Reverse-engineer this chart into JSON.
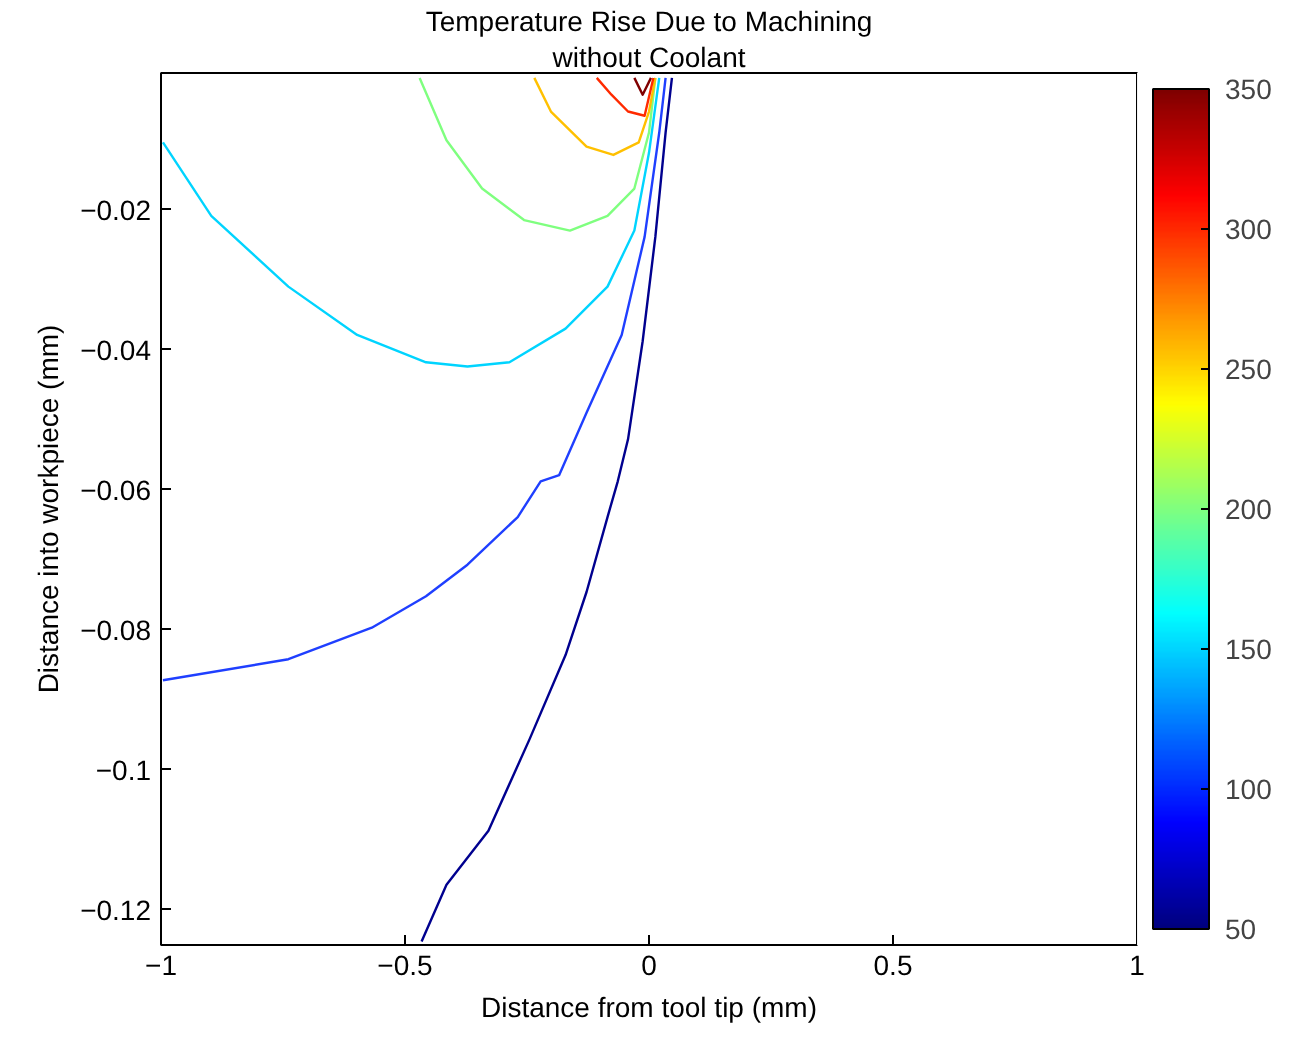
{
  "chart_data": {
    "type": "line",
    "title": "Temperature Rise Due to Machining",
    "subtitle": "without Coolant",
    "xlabel": "Distance from tool tip (mm)",
    "ylabel": "Distance into workpiece (mm)",
    "xlim": [
      -1,
      1
    ],
    "ylim": [
      -0.125,
      -0.0005
    ],
    "xticks": [
      -1,
      -0.5,
      0,
      0.5,
      1
    ],
    "yticks": [
      -0.12,
      -0.1,
      -0.08,
      -0.06,
      -0.04,
      -0.02
    ],
    "clim": [
      50,
      350
    ],
    "cticks": [
      50,
      100,
      150,
      200,
      250,
      300,
      350
    ],
    "series": [
      {
        "color": "#00008f",
        "x": [
          -0.466,
          -0.415,
          -0.329,
          -0.244,
          -0.171,
          -0.128,
          -0.085,
          -0.064,
          -0.043,
          -0.013,
          0.013,
          0.034,
          0.047
        ],
        "values": [
          -0.1245,
          -0.1164,
          -0.1087,
          -0.0955,
          -0.0836,
          -0.0746,
          -0.0639,
          -0.0588,
          -0.0528,
          -0.0388,
          -0.0239,
          -0.009,
          -0.0012
        ]
      },
      {
        "color": "#1f3fff",
        "x": [
          -0.996,
          -0.739,
          -0.568,
          -0.457,
          -0.372,
          -0.269,
          -0.222,
          -0.184,
          -0.128,
          -0.056,
          -0.009,
          0.021,
          0.034
        ],
        "values": [
          -0.0872,
          -0.0842,
          -0.0797,
          -0.0752,
          -0.0707,
          -0.0639,
          -0.0588,
          -0.0579,
          -0.049,
          -0.0379,
          -0.0239,
          -0.009,
          -0.0012
        ]
      },
      {
        "color": "#00d4ff",
        "x": [
          -0.996,
          -0.897,
          -0.739,
          -0.598,
          -0.457,
          -0.372,
          -0.286,
          -0.171,
          -0.085,
          -0.03,
          0,
          0.021
        ],
        "values": [
          -0.0104,
          -0.0209,
          -0.031,
          -0.0379,
          -0.0418,
          -0.0424,
          -0.0418,
          -0.037,
          -0.031,
          -0.023,
          -0.0119,
          -0.0012
        ]
      },
      {
        "color": "#7fff7f",
        "x": [
          -0.47,
          -0.415,
          -0.342,
          -0.256,
          -0.162,
          -0.085,
          -0.03,
          0,
          0.013
        ],
        "values": [
          -0.0012,
          -0.0101,
          -0.017,
          -0.0215,
          -0.023,
          -0.0209,
          -0.017,
          -0.009,
          -0.0012
        ]
      },
      {
        "color": "#ffc000",
        "x": [
          -0.235,
          -0.201,
          -0.128,
          -0.073,
          -0.021,
          0,
          0.013
        ],
        "values": [
          -0.0012,
          -0.006,
          -0.011,
          -0.0122,
          -0.0104,
          -0.006,
          -0.0012
        ]
      },
      {
        "color": "#ff2a00",
        "x": [
          -0.107,
          -0.077,
          -0.043,
          -0.009,
          0.009
        ],
        "values": [
          -0.0012,
          -0.0036,
          -0.006,
          -0.0066,
          -0.0012
        ]
      },
      {
        "color": "#800000",
        "x": [
          -0.03,
          -0.013,
          0.004
        ],
        "values": [
          -0.0012,
          -0.0036,
          -0.0012
        ]
      }
    ]
  }
}
